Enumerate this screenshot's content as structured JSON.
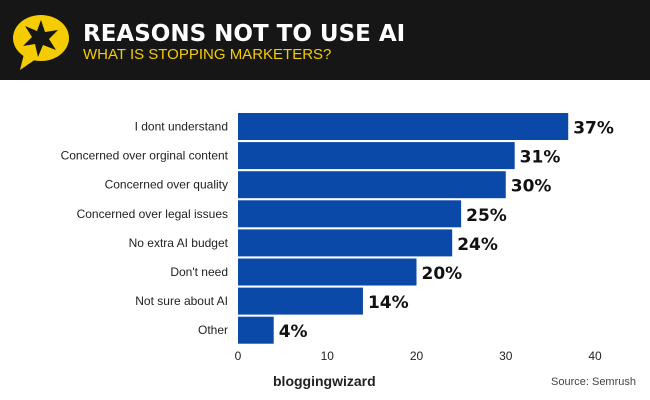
{
  "header": {
    "title": "REASONS NOT TO USE AI",
    "subtitle": "WHAT IS STOPPING MARKETERS?",
    "accent": "#f5cc00",
    "background": "#161616"
  },
  "chart_data": {
    "type": "bar",
    "orientation": "horizontal",
    "categories": [
      "I dont understand",
      "Concerned over orginal content",
      "Concerned over quality",
      "Concerned over legal issues",
      "No extra AI budget",
      "Don't need",
      "Not sure about AI",
      "Other"
    ],
    "values": [
      37,
      31,
      30,
      25,
      24,
      20,
      14,
      4
    ],
    "data_labels": [
      "37%",
      "31%",
      "30%",
      "25%",
      "24%",
      "20%",
      "14%",
      "4%"
    ],
    "xlim": [
      0,
      40
    ],
    "xticks": [
      0,
      10,
      20,
      30,
      40
    ],
    "grid": false,
    "bar_color": "#0a49a8"
  },
  "footer": {
    "brand": "bloggingwizard",
    "source": "Source: Semrush"
  }
}
